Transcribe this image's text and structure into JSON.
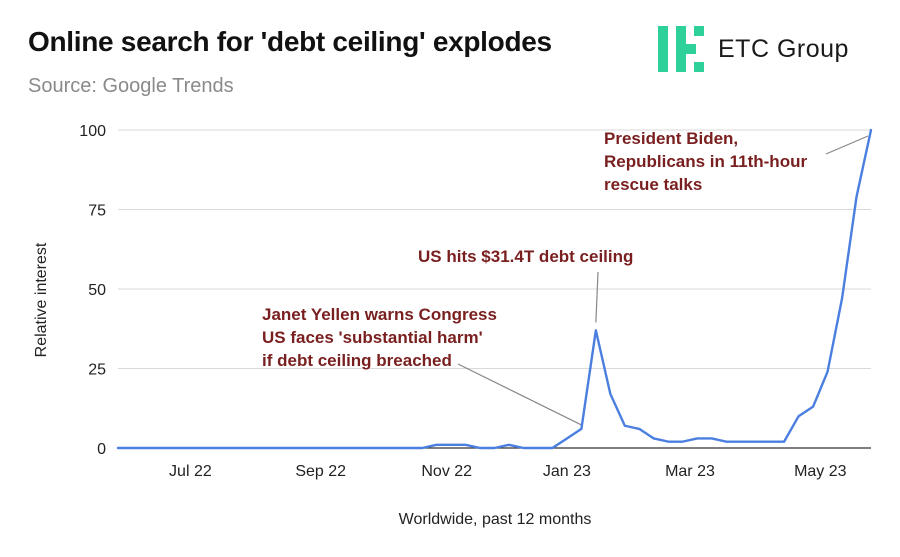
{
  "header": {
    "title": "Online search for 'debt ceiling' explodes",
    "subtitle": "Source: Google Trends"
  },
  "logo": {
    "text": "ETC Group",
    "icon": "etc-group-logo-icon",
    "color": "#2ed19a"
  },
  "colors": {
    "line": "#4a7fe0",
    "annotation": "#7a1f1f",
    "grid": "#d9d9d9",
    "axis": "#333333",
    "leader": "#888888"
  },
  "chart_data": {
    "type": "line",
    "title": "Online search for 'debt ceiling' explodes",
    "subtitle": "Source: Google Trends",
    "xlabel": "Worldwide, past 12 months",
    "ylabel": "Relative interest",
    "ylim": [
      0,
      100
    ],
    "yticks": [
      0,
      25,
      50,
      75,
      100
    ],
    "x_tick_labels": [
      "Jul 22",
      "Sep 22",
      "Nov 22",
      "Jan 23",
      "Mar 23",
      "May 23"
    ],
    "x_tick_positions": [
      5,
      14,
      22.7,
      31,
      39.5,
      48.5
    ],
    "grid": true,
    "series": [
      {
        "values": [
          0,
          0,
          0,
          0,
          0,
          0,
          0,
          0,
          0,
          0,
          0,
          0,
          0,
          0,
          0,
          0,
          0,
          0,
          0,
          0,
          0,
          0,
          1,
          1,
          1,
          0,
          0,
          1,
          0,
          0,
          0,
          3,
          6,
          37,
          17,
          7,
          6,
          3,
          2,
          2,
          3,
          3,
          2,
          2,
          2,
          2,
          2,
          10,
          13,
          24,
          47,
          79,
          100
        ]
      }
    ],
    "annotations": [
      {
        "lines": [
          "Janet Yellen warns Congress",
          "US faces 'substantial harm'",
          "if debt ceiling breached"
        ],
        "point_index": 32,
        "point_value": 6
      },
      {
        "lines": [
          "US hits $31.4T debt ceiling"
        ],
        "point_index": 33,
        "point_value": 37
      },
      {
        "lines": [
          "President Biden,",
          "Republicans in 11th-hour",
          "rescue talks"
        ],
        "point_index": 52,
        "point_value": 100
      }
    ]
  }
}
